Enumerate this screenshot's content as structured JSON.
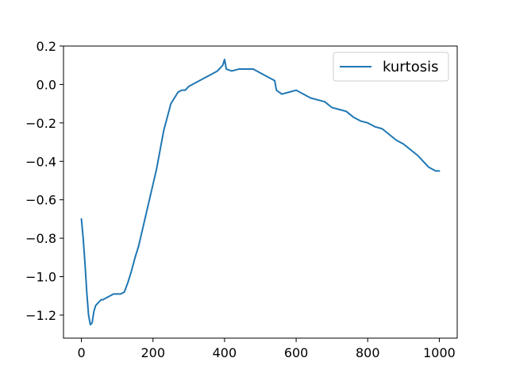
{
  "chart_data": {
    "type": "line",
    "title": "",
    "xlabel": "",
    "ylabel": "",
    "xlim": [
      -50,
      1050
    ],
    "ylim": [
      -1.32,
      0.2
    ],
    "xticks": [
      0,
      200,
      400,
      600,
      800,
      1000
    ],
    "xtick_labels": [
      "0",
      "200",
      "400",
      "600",
      "800",
      "1000"
    ],
    "yticks": [
      -1.2,
      -1.0,
      -0.8,
      -0.6,
      -0.4,
      -0.2,
      0.0,
      0.2
    ],
    "ytick_labels": [
      "−1.2",
      "−1.0",
      "−0.8",
      "−0.6",
      "−0.4",
      "−0.2",
      "0.0",
      "0.2"
    ],
    "grid": false,
    "legend_position": "top-right",
    "series": [
      {
        "name": "kurtosis",
        "color": "#1f77b4",
        "x": [
          0,
          5,
          10,
          15,
          20,
          25,
          30,
          35,
          40,
          45,
          50,
          55,
          60,
          70,
          80,
          90,
          100,
          110,
          120,
          130,
          140,
          150,
          160,
          170,
          180,
          190,
          200,
          210,
          220,
          230,
          240,
          250,
          260,
          270,
          280,
          290,
          300,
          320,
          340,
          360,
          380,
          395,
          400,
          405,
          420,
          440,
          460,
          480,
          500,
          520,
          540,
          545,
          560,
          580,
          600,
          620,
          640,
          660,
          680,
          700,
          720,
          740,
          760,
          780,
          800,
          820,
          840,
          860,
          880,
          900,
          920,
          940,
          950,
          960,
          970,
          980,
          990,
          1000
        ],
        "values": [
          -0.7,
          -0.8,
          -0.93,
          -1.08,
          -1.2,
          -1.25,
          -1.24,
          -1.18,
          -1.15,
          -1.14,
          -1.13,
          -1.12,
          -1.12,
          -1.11,
          -1.1,
          -1.09,
          -1.09,
          -1.09,
          -1.08,
          -1.03,
          -0.97,
          -0.9,
          -0.84,
          -0.76,
          -0.68,
          -0.6,
          -0.52,
          -0.44,
          -0.34,
          -0.24,
          -0.17,
          -0.1,
          -0.07,
          -0.04,
          -0.03,
          -0.03,
          -0.01,
          0.01,
          0.03,
          0.05,
          0.07,
          0.1,
          0.13,
          0.08,
          0.07,
          0.08,
          0.08,
          0.08,
          0.06,
          0.04,
          0.02,
          -0.03,
          -0.05,
          -0.04,
          -0.03,
          -0.05,
          -0.07,
          -0.08,
          -0.09,
          -0.12,
          -0.13,
          -0.14,
          -0.17,
          -0.19,
          -0.2,
          -0.22,
          -0.23,
          -0.26,
          -0.29,
          -0.31,
          -0.34,
          -0.37,
          -0.39,
          -0.41,
          -0.43,
          -0.44,
          -0.45,
          -0.45
        ]
      }
    ]
  }
}
